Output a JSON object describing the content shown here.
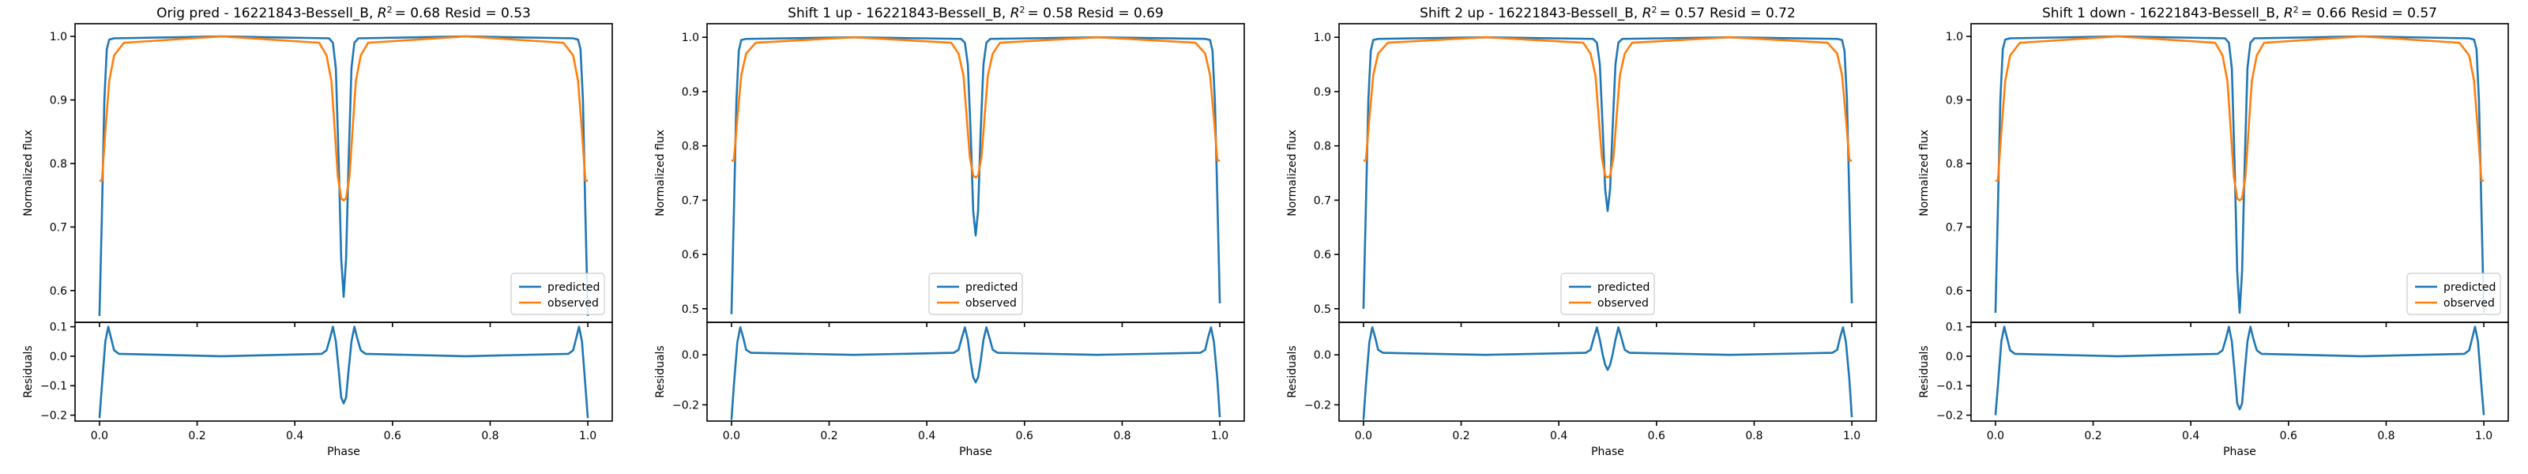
{
  "chart_data": [
    {
      "type": "line",
      "title": "Orig pred - 16221843-Bessell_B, $R^2 = 0.68$ Resid = 0.53",
      "title_prefix": "Orig pred - 16221843-Bessell_B, ",
      "title_r2": "= 0.68",
      "title_suffix": "Resid = 0.53",
      "ylabel": "Normalized flux",
      "ylabel_resid": "Residuals",
      "xlabel": "Phase",
      "ylim": [
        0.55,
        1.02
      ],
      "yticks": [
        0.6,
        0.7,
        0.8,
        0.9,
        1.0
      ],
      "ytick_labels": [
        "0.6",
        "0.7",
        "0.8",
        "0.9",
        "1.0"
      ],
      "ylim_resid": [
        -0.22,
        0.115
      ],
      "yticks_resid": [
        -0.2,
        -0.1,
        0.0,
        0.1
      ],
      "ytick_labels_resid": [
        "−0.2",
        "−0.1",
        "0.0",
        "0.1"
      ],
      "xlim": [
        -0.05,
        1.05
      ],
      "xticks": [
        0.0,
        0.2,
        0.4,
        0.6,
        0.8,
        1.0
      ],
      "xtick_labels": [
        "0.0",
        "0.2",
        "0.4",
        "0.6",
        "0.8",
        "1.0"
      ],
      "legend_position": "lower right",
      "series": [
        {
          "name": "predicted",
          "color": "#1f77b4",
          "x": [
            0.0,
            0.005,
            0.01,
            0.015,
            0.02,
            0.03,
            0.25,
            0.47,
            0.478,
            0.484,
            0.49,
            0.495,
            0.5,
            0.505,
            0.51,
            0.516,
            0.522,
            0.53,
            0.75,
            0.97,
            0.98,
            0.985,
            0.99,
            0.995,
            1.0
          ],
          "y": [
            0.56,
            0.72,
            0.9,
            0.98,
            0.995,
            0.997,
            1.0,
            0.997,
            0.99,
            0.95,
            0.8,
            0.65,
            0.59,
            0.65,
            0.8,
            0.95,
            0.99,
            0.997,
            1.0,
            0.997,
            0.995,
            0.98,
            0.9,
            0.72,
            0.56
          ]
        },
        {
          "name": "observed",
          "color": "#ff7f0e",
          "x": [
            0.0,
            0.005,
            0.012,
            0.02,
            0.03,
            0.05,
            0.25,
            0.45,
            0.465,
            0.475,
            0.482,
            0.488,
            0.495,
            0.5,
            0.505,
            0.512,
            0.518,
            0.525,
            0.535,
            0.55,
            0.75,
            0.95,
            0.97,
            0.98,
            0.988,
            0.995,
            1.0
          ],
          "y": [
            0.773,
            0.773,
            0.85,
            0.93,
            0.97,
            0.99,
            1.0,
            0.99,
            0.97,
            0.93,
            0.85,
            0.78,
            0.745,
            0.742,
            0.745,
            0.78,
            0.85,
            0.93,
            0.97,
            0.99,
            1.0,
            0.99,
            0.97,
            0.93,
            0.85,
            0.773,
            0.773
          ]
        }
      ],
      "residuals": {
        "name": "residuals",
        "color": "#1f77b4",
        "x": [
          0.0,
          0.005,
          0.012,
          0.018,
          0.024,
          0.03,
          0.04,
          0.25,
          0.455,
          0.465,
          0.472,
          0.478,
          0.484,
          0.49,
          0.495,
          0.5,
          0.505,
          0.51,
          0.516,
          0.522,
          0.528,
          0.535,
          0.545,
          0.75,
          0.96,
          0.97,
          0.976,
          0.982,
          0.988,
          0.995,
          1.0
        ],
        "y": [
          -0.21,
          -0.1,
          0.05,
          0.1,
          0.06,
          0.02,
          0.008,
          0.0,
          0.008,
          0.02,
          0.06,
          0.1,
          0.05,
          -0.05,
          -0.14,
          -0.16,
          -0.14,
          -0.05,
          0.05,
          0.1,
          0.06,
          0.02,
          0.008,
          0.0,
          0.008,
          0.02,
          0.06,
          0.1,
          0.05,
          -0.1,
          -0.21
        ]
      }
    },
    {
      "type": "line",
      "title": "Shift 1 up - 16221843-Bessell_B, $R^2 = 0.58$ Resid = 0.69",
      "title_prefix": "Shift 1 up - 16221843-Bessell_B, ",
      "title_r2": "= 0.58",
      "title_suffix": "Resid = 0.69",
      "ylabel": "Normalized flux",
      "ylabel_resid": "Residuals",
      "xlabel": "Phase",
      "ylim": [
        0.475,
        1.025
      ],
      "yticks": [
        0.5,
        0.6,
        0.7,
        0.8,
        0.9,
        1.0
      ],
      "ytick_labels": [
        "0.5",
        "0.6",
        "0.7",
        "0.8",
        "0.9",
        "1.0"
      ],
      "ylim_resid": [
        -0.265,
        0.13
      ],
      "yticks_resid": [
        -0.2,
        0.0
      ],
      "ytick_labels_resid": [
        "−0.2",
        "0.0"
      ],
      "xlim": [
        -0.05,
        1.05
      ],
      "xticks": [
        0.0,
        0.2,
        0.4,
        0.6,
        0.8,
        1.0
      ],
      "xtick_labels": [
        "0.0",
        "0.2",
        "0.4",
        "0.6",
        "0.8",
        "1.0"
      ],
      "legend_position": "lower center",
      "series": [
        {
          "name": "predicted",
          "color": "#1f77b4",
          "x": [
            0.0,
            0.005,
            0.01,
            0.015,
            0.02,
            0.03,
            0.25,
            0.47,
            0.478,
            0.484,
            0.49,
            0.495,
            0.5,
            0.505,
            0.51,
            0.516,
            0.522,
            0.53,
            0.75,
            0.97,
            0.98,
            0.985,
            0.99,
            0.995,
            1.0
          ],
          "y": [
            0.49,
            0.68,
            0.88,
            0.975,
            0.995,
            0.997,
            1.0,
            0.997,
            0.99,
            0.95,
            0.82,
            0.68,
            0.635,
            0.68,
            0.82,
            0.95,
            0.99,
            0.997,
            1.0,
            0.997,
            0.995,
            0.975,
            0.88,
            0.7,
            0.51
          ]
        },
        {
          "name": "observed",
          "color": "#ff7f0e",
          "x": [
            0.0,
            0.005,
            0.012,
            0.02,
            0.03,
            0.05,
            0.25,
            0.45,
            0.465,
            0.475,
            0.482,
            0.488,
            0.495,
            0.5,
            0.505,
            0.512,
            0.518,
            0.525,
            0.535,
            0.55,
            0.75,
            0.95,
            0.97,
            0.98,
            0.988,
            0.995,
            1.0
          ],
          "y": [
            0.773,
            0.773,
            0.85,
            0.93,
            0.97,
            0.99,
            1.0,
            0.99,
            0.97,
            0.93,
            0.85,
            0.78,
            0.745,
            0.742,
            0.745,
            0.78,
            0.85,
            0.93,
            0.97,
            0.99,
            1.0,
            0.99,
            0.97,
            0.93,
            0.85,
            0.773,
            0.773
          ]
        }
      ],
      "residuals": {
        "name": "residuals",
        "color": "#1f77b4",
        "x": [
          0.0,
          0.005,
          0.012,
          0.018,
          0.024,
          0.03,
          0.04,
          0.25,
          0.455,
          0.465,
          0.472,
          0.478,
          0.484,
          0.49,
          0.495,
          0.5,
          0.505,
          0.51,
          0.516,
          0.522,
          0.528,
          0.535,
          0.545,
          0.75,
          0.96,
          0.97,
          0.976,
          0.982,
          0.988,
          0.995,
          1.0
        ],
        "y": [
          -0.26,
          -0.12,
          0.05,
          0.11,
          0.07,
          0.02,
          0.008,
          0.0,
          0.008,
          0.02,
          0.07,
          0.11,
          0.06,
          -0.03,
          -0.09,
          -0.11,
          -0.09,
          -0.03,
          0.06,
          0.11,
          0.07,
          0.02,
          0.008,
          0.0,
          0.008,
          0.02,
          0.07,
          0.11,
          0.05,
          -0.1,
          -0.25
        ]
      }
    },
    {
      "type": "line",
      "title": "Shift 2 up - 16221843-Bessell_B, $R^2 = 0.57$ Resid = 0.72",
      "title_prefix": "Shift 2 up - 16221843-Bessell_B, ",
      "title_r2": "= 0.57",
      "title_suffix": "Resid = 0.72",
      "ylabel": "Normalized flux",
      "ylabel_resid": "Residuals",
      "xlabel": "Phase",
      "ylim": [
        0.475,
        1.025
      ],
      "yticks": [
        0.5,
        0.6,
        0.7,
        0.8,
        0.9,
        1.0
      ],
      "ytick_labels": [
        "0.5",
        "0.6",
        "0.7",
        "0.8",
        "0.9",
        "1.0"
      ],
      "ylim_resid": [
        -0.265,
        0.13
      ],
      "yticks_resid": [
        -0.2,
        0.0
      ],
      "ytick_labels_resid": [
        "−0.2",
        "0.0"
      ],
      "xlim": [
        -0.05,
        1.05
      ],
      "xticks": [
        0.0,
        0.2,
        0.4,
        0.6,
        0.8,
        1.0
      ],
      "xtick_labels": [
        "0.0",
        "0.2",
        "0.4",
        "0.6",
        "0.8",
        "1.0"
      ],
      "legend_position": "lower center",
      "series": [
        {
          "name": "predicted",
          "color": "#1f77b4",
          "x": [
            0.0,
            0.005,
            0.01,
            0.015,
            0.02,
            0.03,
            0.25,
            0.47,
            0.478,
            0.484,
            0.49,
            0.495,
            0.5,
            0.505,
            0.51,
            0.516,
            0.522,
            0.53,
            0.75,
            0.97,
            0.98,
            0.985,
            0.99,
            0.995,
            1.0
          ],
          "y": [
            0.5,
            0.69,
            0.885,
            0.975,
            0.995,
            0.997,
            1.0,
            0.997,
            0.99,
            0.95,
            0.83,
            0.72,
            0.68,
            0.72,
            0.83,
            0.95,
            0.99,
            0.997,
            1.0,
            0.997,
            0.995,
            0.975,
            0.885,
            0.7,
            0.51
          ]
        },
        {
          "name": "observed",
          "color": "#ff7f0e",
          "x": [
            0.0,
            0.005,
            0.012,
            0.02,
            0.03,
            0.05,
            0.25,
            0.45,
            0.465,
            0.475,
            0.482,
            0.488,
            0.495,
            0.5,
            0.505,
            0.512,
            0.518,
            0.525,
            0.535,
            0.55,
            0.75,
            0.95,
            0.97,
            0.98,
            0.988,
            0.995,
            1.0
          ],
          "y": [
            0.773,
            0.773,
            0.85,
            0.93,
            0.97,
            0.99,
            1.0,
            0.99,
            0.97,
            0.93,
            0.85,
            0.78,
            0.745,
            0.742,
            0.745,
            0.78,
            0.85,
            0.93,
            0.97,
            0.99,
            1.0,
            0.99,
            0.97,
            0.93,
            0.85,
            0.773,
            0.773
          ]
        }
      ],
      "residuals": {
        "name": "residuals",
        "color": "#1f77b4",
        "x": [
          0.0,
          0.005,
          0.012,
          0.018,
          0.024,
          0.03,
          0.04,
          0.25,
          0.455,
          0.465,
          0.472,
          0.478,
          0.484,
          0.49,
          0.495,
          0.5,
          0.505,
          0.51,
          0.516,
          0.522,
          0.528,
          0.535,
          0.545,
          0.75,
          0.96,
          0.97,
          0.976,
          0.982,
          0.988,
          0.995,
          1.0
        ],
        "y": [
          -0.26,
          -0.12,
          0.05,
          0.11,
          0.07,
          0.02,
          0.008,
          0.0,
          0.008,
          0.02,
          0.07,
          0.11,
          0.06,
          0.0,
          -0.04,
          -0.06,
          -0.04,
          0.0,
          0.06,
          0.11,
          0.07,
          0.02,
          0.008,
          0.0,
          0.008,
          0.02,
          0.07,
          0.11,
          0.05,
          -0.1,
          -0.25
        ]
      }
    },
    {
      "type": "line",
      "title": "Shift 1 down - 16221843-Bessell_B, $R^2 = 0.66$ Resid = 0.57",
      "title_prefix": "Shift 1 down - 16221843-Bessell_B, ",
      "title_r2": "= 0.66",
      "title_suffix": "Resid = 0.57",
      "ylabel": "Normalized flux",
      "ylabel_resid": "Residuals",
      "xlabel": "Phase",
      "ylim": [
        0.55,
        1.02
      ],
      "yticks": [
        0.6,
        0.7,
        0.8,
        0.9,
        1.0
      ],
      "ytick_labels": [
        "0.6",
        "0.7",
        "0.8",
        "0.9",
        "1.0"
      ],
      "ylim_resid": [
        -0.22,
        0.115
      ],
      "yticks_resid": [
        -0.2,
        -0.1,
        0.0,
        0.1
      ],
      "ytick_labels_resid": [
        "−0.2",
        "−0.1",
        "0.0",
        "0.1"
      ],
      "xlim": [
        -0.05,
        1.05
      ],
      "xticks": [
        0.0,
        0.2,
        0.4,
        0.6,
        0.8,
        1.0
      ],
      "xtick_labels": [
        "0.0",
        "0.2",
        "0.4",
        "0.6",
        "0.8",
        "1.0"
      ],
      "legend_position": "lower right",
      "series": [
        {
          "name": "predicted",
          "color": "#1f77b4",
          "x": [
            0.0,
            0.005,
            0.01,
            0.015,
            0.02,
            0.03,
            0.25,
            0.47,
            0.478,
            0.484,
            0.49,
            0.495,
            0.5,
            0.505,
            0.51,
            0.516,
            0.522,
            0.53,
            0.75,
            0.97,
            0.98,
            0.985,
            0.99,
            0.995,
            1.0
          ],
          "y": [
            0.565,
            0.73,
            0.9,
            0.98,
            0.995,
            0.997,
            1.0,
            0.997,
            0.99,
            0.95,
            0.79,
            0.63,
            0.565,
            0.63,
            0.79,
            0.95,
            0.99,
            0.997,
            1.0,
            0.997,
            0.995,
            0.98,
            0.9,
            0.73,
            0.565
          ]
        },
        {
          "name": "observed",
          "color": "#ff7f0e",
          "x": [
            0.0,
            0.005,
            0.012,
            0.02,
            0.03,
            0.05,
            0.25,
            0.45,
            0.465,
            0.475,
            0.482,
            0.488,
            0.495,
            0.5,
            0.505,
            0.512,
            0.518,
            0.525,
            0.535,
            0.55,
            0.75,
            0.95,
            0.97,
            0.98,
            0.988,
            0.995,
            1.0
          ],
          "y": [
            0.773,
            0.773,
            0.85,
            0.93,
            0.97,
            0.99,
            1.0,
            0.99,
            0.97,
            0.93,
            0.85,
            0.78,
            0.745,
            0.742,
            0.745,
            0.78,
            0.85,
            0.93,
            0.97,
            0.99,
            1.0,
            0.99,
            0.97,
            0.93,
            0.85,
            0.773,
            0.773
          ]
        }
      ],
      "residuals": {
        "name": "residuals",
        "color": "#1f77b4",
        "x": [
          0.0,
          0.005,
          0.012,
          0.018,
          0.024,
          0.03,
          0.04,
          0.25,
          0.455,
          0.465,
          0.472,
          0.478,
          0.484,
          0.49,
          0.495,
          0.5,
          0.505,
          0.51,
          0.516,
          0.522,
          0.528,
          0.535,
          0.545,
          0.75,
          0.96,
          0.97,
          0.976,
          0.982,
          0.988,
          0.995,
          1.0
        ],
        "y": [
          -0.2,
          -0.1,
          0.05,
          0.1,
          0.06,
          0.02,
          0.008,
          0.0,
          0.008,
          0.02,
          0.06,
          0.1,
          0.05,
          -0.06,
          -0.16,
          -0.18,
          -0.16,
          -0.06,
          0.05,
          0.1,
          0.06,
          0.02,
          0.008,
          0.0,
          0.008,
          0.02,
          0.06,
          0.1,
          0.05,
          -0.1,
          -0.2
        ]
      }
    }
  ]
}
